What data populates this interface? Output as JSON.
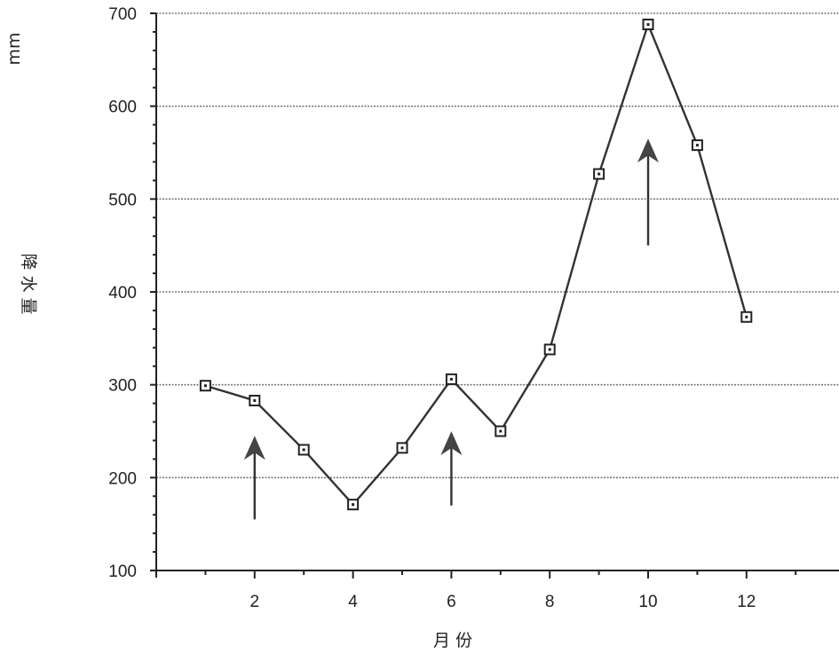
{
  "chart_data": {
    "type": "line",
    "title": "",
    "xlabel": "月 份",
    "ylabel": "降 水 量",
    "yunit": "mm",
    "xlim": [
      0,
      14
    ],
    "ylim": [
      100,
      700
    ],
    "xticks": [
      2,
      4,
      6,
      8,
      10,
      12
    ],
    "yticks": [
      100,
      200,
      300,
      400,
      500,
      600,
      700
    ],
    "grid": true,
    "x": [
      1,
      2,
      3,
      4,
      5,
      6,
      7,
      8,
      9,
      10,
      11,
      12
    ],
    "series": [
      {
        "values": [
          299,
          283,
          230,
          171,
          232,
          306,
          250,
          338,
          527,
          688,
          558,
          373
        ]
      }
    ],
    "annotations": [
      {
        "type": "arrow",
        "x": 2,
        "y_from": 155,
        "y_to": 245
      },
      {
        "type": "arrow",
        "x": 6,
        "y_from": 170,
        "y_to": 250
      },
      {
        "type": "arrow",
        "x": 10,
        "y_from": 450,
        "y_to": 565
      }
    ]
  }
}
